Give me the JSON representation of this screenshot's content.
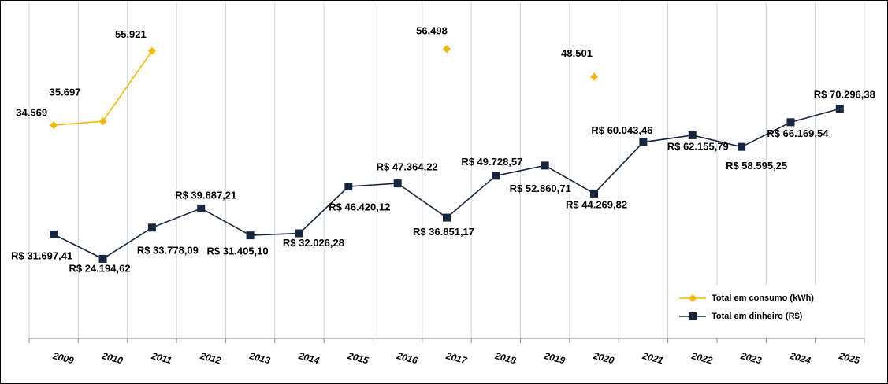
{
  "chart_data": {
    "type": "line",
    "categories": [
      "2009",
      "2010",
      "2011",
      "2012",
      "2013",
      "2014",
      "2015",
      "2016",
      "2017",
      "2018",
      "2019",
      "2020",
      "2021",
      "2022",
      "2023",
      "2024",
      "2025"
    ],
    "series": [
      {
        "name": "Total em consumo (kWh)",
        "color": "#f5b800",
        "marker": "diamond",
        "axis": "y2",
        "values": [
          34569,
          35697,
          55921,
          null,
          null,
          null,
          null,
          null,
          56498,
          null,
          null,
          48501,
          null,
          null,
          null,
          null,
          null
        ],
        "value_labels": [
          "34.569",
          "35.697",
          "55.921",
          null,
          null,
          null,
          null,
          null,
          "56.498",
          null,
          null,
          "48.501",
          null,
          null,
          null,
          null,
          null
        ]
      },
      {
        "name": "Total em dinheiro (R$)",
        "color": "#17263f",
        "marker": "square",
        "values": [
          31697.41,
          24194.62,
          33778.09,
          39687.21,
          31405.1,
          32026.28,
          46420.12,
          47364.22,
          36851.17,
          49728.57,
          52860.71,
          44269.82,
          60043.46,
          62155.79,
          58595.25,
          66169.54,
          70296.38
        ],
        "value_labels": [
          "R$ 31.697,41",
          "R$ 24.194,62",
          "R$ 33.778,09",
          "R$ 39.687,21",
          "R$ 31.405,10",
          "R$ 32.026,28",
          "R$ 46.420,12",
          "R$ 47.364,22",
          "R$ 36.851,17",
          "R$ 49.728,57",
          "R$ 52.860,71",
          "R$ 44.269,82",
          "R$ 60.043,46",
          "R$ 62.155,79",
          "R$ 58.595,25",
          "R$ 66.169,54",
          "R$ 70.296,38"
        ]
      }
    ],
    "ylim": [
      0,
      103000
    ],
    "y2lim": [
      -26500,
      69900
    ],
    "grid": true,
    "legend": "lower right"
  }
}
